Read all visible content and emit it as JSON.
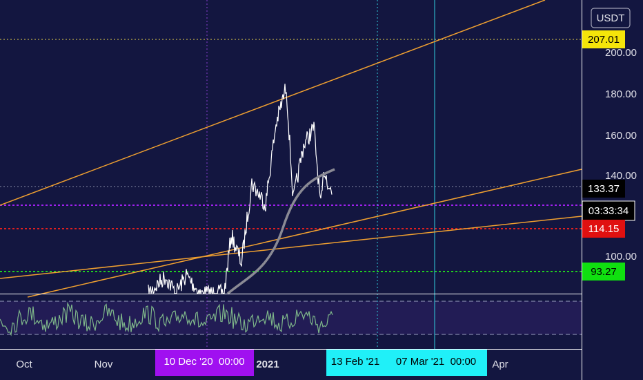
{
  "axis": {
    "currency": "USDT",
    "price_labels": [
      "200.00",
      "180.00",
      "160.00",
      "140.00",
      "100.00"
    ],
    "time_labels": [
      "Oct",
      "Nov",
      "2021",
      "Apr"
    ]
  },
  "price_tags": [
    "207.01",
    "133.37",
    "03:33:34",
    "114.15",
    "93.27"
  ],
  "crosshair_labels": [
    "10 Dec '20  00:00",
    "13 Feb '21",
    "07 Mar '21  00:00"
  ]
}
